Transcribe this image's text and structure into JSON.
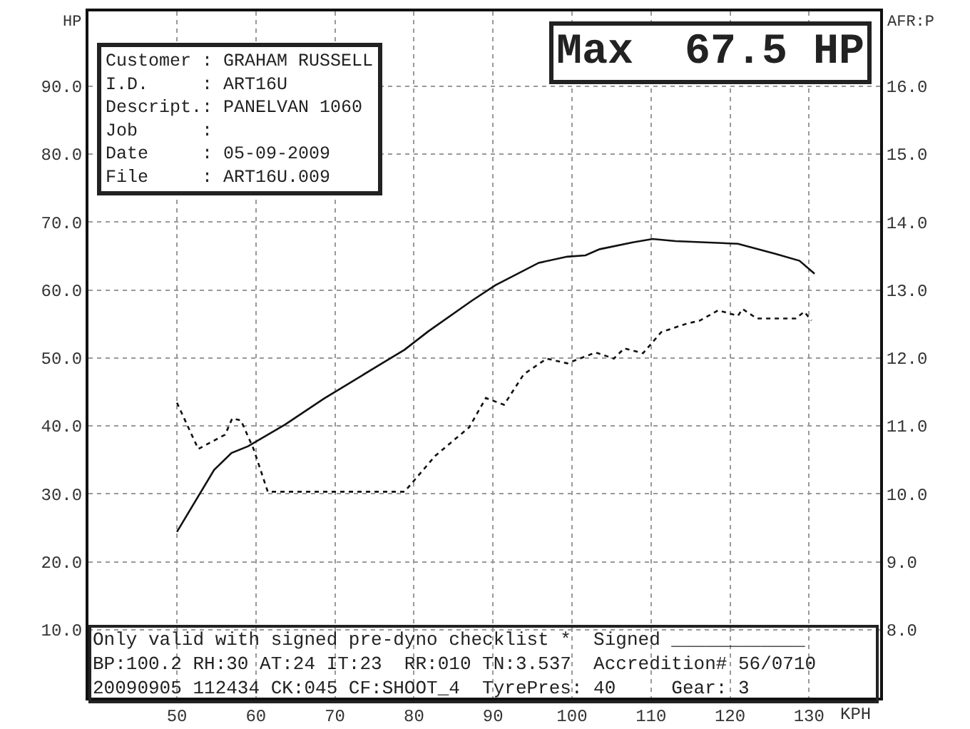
{
  "chart_data": {
    "type": "line",
    "xlabel": "KPH",
    "ylabel": "HP",
    "y2label": "AFR:P",
    "xlim": [
      38.8,
      139
    ],
    "xticks": [
      50,
      60,
      70,
      80,
      90,
      100,
      110,
      120,
      130
    ],
    "ylim": [
      0,
      101
    ],
    "yticks": [
      {
        "value": 10,
        "label": "10.0"
      },
      {
        "value": 20,
        "label": "20.0"
      },
      {
        "value": 30,
        "label": "30.0"
      },
      {
        "value": 40,
        "label": "40.0"
      },
      {
        "value": 50,
        "label": "50.0"
      },
      {
        "value": 60,
        "label": "60.0"
      },
      {
        "value": 70,
        "label": "70.0"
      },
      {
        "value": 80,
        "label": "80.0"
      },
      {
        "value": 90,
        "label": "90.0"
      }
    ],
    "y2lim": [
      7,
      17.1
    ],
    "y2ticks": [
      {
        "value": 8,
        "label": "8.0"
      },
      {
        "value": 9,
        "label": "9.0"
      },
      {
        "value": 10,
        "label": "10.0"
      },
      {
        "value": 11,
        "label": "11.0"
      },
      {
        "value": 12,
        "label": "12.0"
      },
      {
        "value": 13,
        "label": "13.0"
      },
      {
        "value": 14,
        "label": "14.0"
      },
      {
        "value": 15,
        "label": "15.0"
      },
      {
        "value": 16,
        "label": "16.0"
      }
    ],
    "grid": true,
    "series": [
      {
        "color": "#111111",
        "line_style": "solid",
        "x": [
          50,
          54.7,
          56.9,
          59,
          63.7,
          68.6,
          75.1,
          78.8,
          81.8,
          87.3,
          90.3,
          95.8,
          99.4,
          101.7,
          103.5,
          107.7,
          110.2,
          113.1,
          121,
          125.8,
          128.8,
          130.7
        ],
        "values": [
          24.4,
          33.5,
          36,
          37,
          40.2,
          44,
          48.6,
          51.2,
          53.9,
          58.4,
          60.7,
          64,
          64.9,
          65.1,
          66,
          67,
          67.5,
          67.2,
          66.8,
          65.3,
          64.3,
          62.4
        ]
      },
      {
        "color": "#111111",
        "line_style": "dotted",
        "axis": "y2",
        "x": [
          50,
          52.7,
          56.1,
          57,
          58.1,
          59.7,
          61.5,
          70,
          78.8,
          82.7,
          87,
          89.1,
          91.4,
          93.9,
          96.8,
          99.4,
          103,
          105.3,
          106.6,
          109,
          111.3,
          114.4,
          116.2,
          118.5,
          121,
          121.6,
          123.4,
          125.8,
          128.3,
          129.4,
          130.3
        ],
        "values": [
          11.34,
          10.66,
          10.87,
          11.11,
          11.08,
          10.66,
          10.03,
          10.03,
          10.03,
          10.56,
          10.98,
          11.41,
          11.31,
          11.76,
          11.99,
          11.92,
          12.08,
          11.99,
          12.14,
          12.07,
          12.38,
          12.5,
          12.55,
          12.7,
          12.62,
          12.72,
          12.58,
          12.58,
          12.58,
          12.68,
          12.55
        ]
      }
    ],
    "annotations": [
      "Max  67.5 HP",
      "Customer : GRAHAM RUSSELL\nI.D.     : ART16U\nDescript.: PANELVAN 1060\nJob      :\nDate     : 05-09-2009\nFile     : ART16U.009",
      "Only valid with signed pre-dyno checklist *  Signed ____________\nBP:100.2 RH:30 AT:24 IT:23  RR:010 TN:3.537  Accredition# 56/0710\n20090905 112434 CK:045 CF:SHOOT_4  TyrePres: 40     Gear: 3"
    ]
  }
}
